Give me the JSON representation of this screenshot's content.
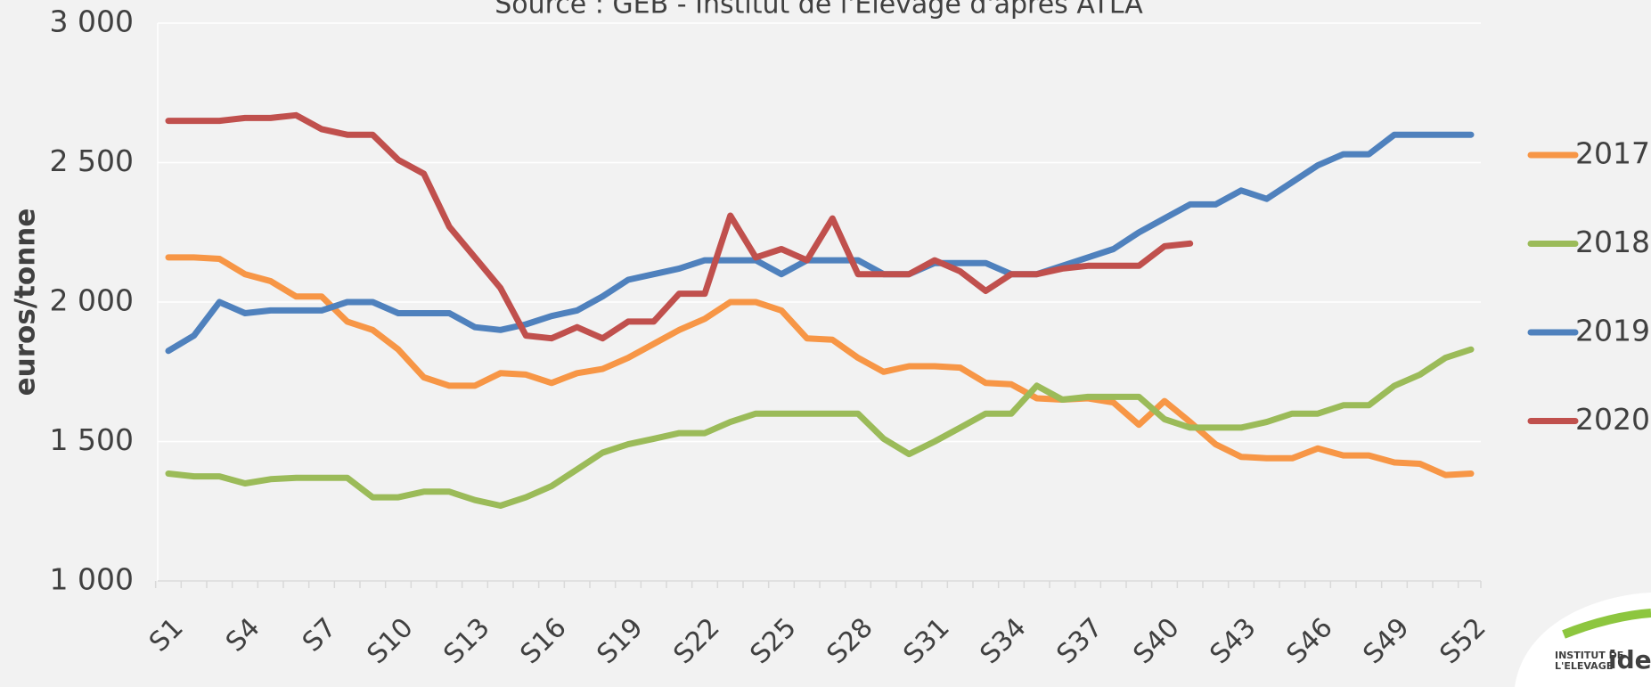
{
  "chart_data": {
    "type": "line",
    "title": "Source : GEB - Institut de l'Elevage d'après ATLA",
    "y_label": "euros/tonne",
    "categories": [
      "S1",
      null,
      null,
      "S4",
      null,
      null,
      "S7",
      null,
      null,
      "S10",
      null,
      null,
      "S13",
      null,
      null,
      "S16",
      null,
      null,
      "S19",
      null,
      null,
      "S22",
      null,
      null,
      "S25",
      null,
      null,
      "S28",
      null,
      null,
      "S31",
      null,
      null,
      "S34",
      null,
      null,
      "S37",
      null,
      null,
      "S40",
      null,
      null,
      "S43",
      null,
      null,
      "S46",
      null,
      null,
      "S49",
      null,
      null,
      "S52"
    ],
    "ylim": [
      1000,
      3000
    ],
    "yticks": [
      {
        "value": 1000,
        "label": "1 000"
      },
      {
        "value": 1500,
        "label": "1 500"
      },
      {
        "value": 2000,
        "label": "2 000"
      },
      {
        "value": 2500,
        "label": "2 500"
      },
      {
        "value": 3000,
        "label": "3 000"
      }
    ],
    "grid": true,
    "legend": "right",
    "series": [
      {
        "name": "2017",
        "color": "#f79646",
        "values": [
          2160,
          2160,
          2155,
          2100,
          2075,
          2020,
          2020,
          1930,
          1900,
          1830,
          1730,
          1700,
          1700,
          1745,
          1740,
          1710,
          1745,
          1760,
          1800,
          1850,
          1900,
          1940,
          2000,
          2000,
          1970,
          1870,
          1865,
          1800,
          1750,
          1770,
          1770,
          1765,
          1710,
          1705,
          1655,
          1650,
          1655,
          1640,
          1560,
          1645,
          1570,
          1490,
          1445,
          1440,
          1440,
          1475,
          1450,
          1450,
          1425,
          1420,
          1380,
          1385
        ]
      },
      {
        "name": "2018",
        "color": "#9bbb59",
        "values": [
          1385,
          1375,
          1375,
          1350,
          1365,
          1370,
          1370,
          1370,
          1300,
          1300,
          1320,
          1320,
          1290,
          1270,
          1300,
          1340,
          1400,
          1460,
          1490,
          1510,
          1530,
          1530,
          1570,
          1600,
          1600,
          1600,
          1600,
          1600,
          1510,
          1455,
          1500,
          1550,
          1600,
          1600,
          1700,
          1650,
          1660,
          1660,
          1660,
          1580,
          1550,
          1550,
          1550,
          1570,
          1600,
          1600,
          1630,
          1630,
          1700,
          1740,
          1800,
          1830
        ]
      },
      {
        "name": "2019",
        "color": "#4f81bd",
        "values": [
          1825,
          1880,
          2000,
          1960,
          1970,
          1970,
          1970,
          2000,
          2000,
          1960,
          1960,
          1960,
          1910,
          1900,
          1920,
          1950,
          1970,
          2020,
          2080,
          2100,
          2120,
          2150,
          2150,
          2150,
          2100,
          2150,
          2150,
          2150,
          2100,
          2100,
          2140,
          2140,
          2140,
          2100,
          2100,
          2130,
          2160,
          2190,
          2250,
          2300,
          2350,
          2350,
          2400,
          2370,
          2430,
          2490,
          2530,
          2530,
          2600,
          2600,
          2600,
          2600
        ]
      },
      {
        "name": "2020",
        "color": "#c0504d",
        "values": [
          2650,
          2650,
          2650,
          2660,
          2660,
          2670,
          2620,
          2600,
          2600,
          2510,
          2460,
          2270,
          2160,
          2050,
          1880,
          1870,
          1910,
          1870,
          1930,
          1930,
          2030,
          2030,
          2310,
          2160,
          2190,
          2150,
          2300,
          2100,
          2100,
          2100,
          2150,
          2110,
          2040,
          2100,
          2100,
          2120,
          2130,
          2130,
          2130,
          2200,
          2210,
          null,
          null,
          null,
          null,
          null,
          null,
          null,
          null,
          null,
          null,
          null
        ]
      }
    ]
  },
  "logo": {
    "line1": "INSTITUT DE",
    "line2": "L'ELEVAGE",
    "brand": "idele"
  }
}
